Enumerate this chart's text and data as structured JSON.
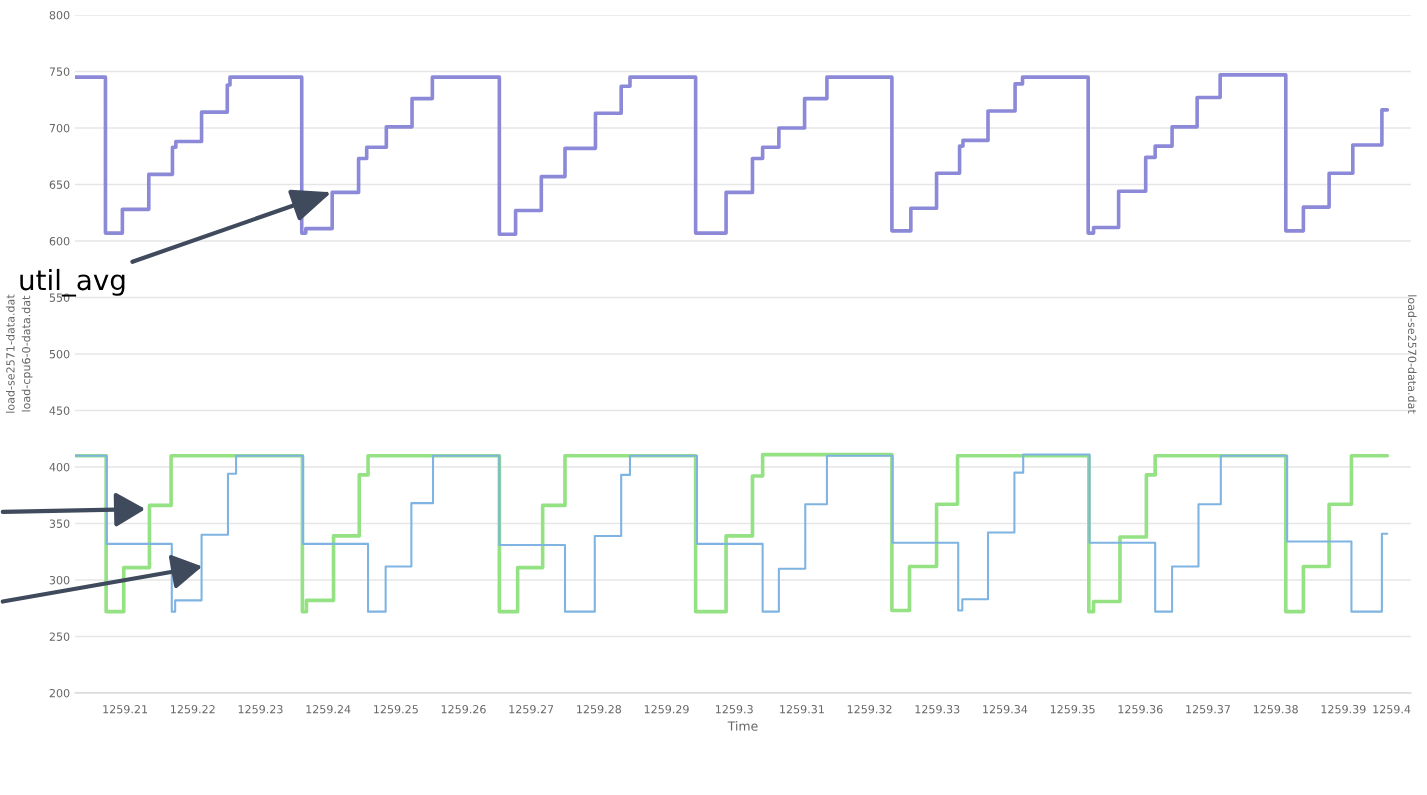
{
  "chart_data": {
    "type": "step",
    "xlabel": "Time",
    "ylabel": [
      "load-se2571-data.dat",
      "load-cpu6-0-data.dat"
    ],
    "y2label": "load-se2570-data.dat",
    "xlim": [
      1259.2026,
      1259.4
    ],
    "xticks": [
      1259.21,
      1259.22,
      1259.23,
      1259.24,
      1259.25,
      1259.26,
      1259.27,
      1259.28,
      1259.29,
      1259.3,
      1259.31,
      1259.32,
      1259.33,
      1259.34,
      1259.35,
      1259.36,
      1259.37,
      1259.38,
      1259.39,
      1259.4
    ],
    "ylim": [
      200,
      800
    ],
    "yticks": [
      200,
      250,
      300,
      350,
      400,
      450,
      500,
      550,
      600,
      650,
      700,
      750,
      800
    ],
    "grid": "y",
    "annotations": [
      {
        "text": "util_avg",
        "x": 1259.2409,
        "y": 644
      }
    ],
    "series": [
      {
        "color": "#8c89d8",
        "x": [
          1259.2026,
          1259.2071,
          1259.2096,
          1259.2135,
          1259.217,
          1259.2175,
          1259.2213,
          1259.2251,
          1259.2255,
          1259.2361,
          1259.2367,
          1259.2406,
          1259.2445,
          1259.2457,
          1259.2486,
          1259.2524,
          1259.2554,
          1259.2653,
          1259.2677,
          1259.2715,
          1259.275,
          1259.2795,
          1259.2833,
          1259.2846,
          1259.2943,
          1259.2988,
          1259.3027,
          1259.3042,
          1259.3066,
          1259.3104,
          1259.3137,
          1259.3233,
          1259.3261,
          1259.3299,
          1259.3333,
          1259.3338,
          1259.3375,
          1259.3415,
          1259.3426,
          1259.3523,
          1259.3531,
          1259.3568,
          1259.3608,
          1259.3622,
          1259.3647,
          1259.3684,
          1259.3718,
          1259.3815,
          1259.3841,
          1259.3879,
          1259.3914,
          1259.3957,
          1259.3965
        ],
        "values": [
          745,
          607,
          628,
          659,
          683,
          688,
          714,
          738,
          745,
          607,
          611,
          643,
          673,
          683,
          701,
          726,
          745,
          606,
          627,
          657,
          682,
          713,
          737,
          745,
          607,
          643,
          673,
          683,
          700,
          726,
          745,
          609,
          629,
          660,
          684,
          689,
          715,
          739,
          745,
          607,
          612,
          644,
          674,
          684,
          701,
          727,
          747,
          609,
          630,
          660,
          685,
          716,
          716
        ]
      },
      {
        "color": "#94e283",
        "x": [
          1259.2026,
          1259.2072,
          1259.2098,
          1259.2136,
          1259.2168,
          1259.2362,
          1259.2368,
          1259.2408,
          1259.2446,
          1259.2459,
          1259.2653,
          1259.268,
          1259.2717,
          1259.275,
          1259.2943,
          1259.2988,
          1259.3027,
          1259.3042,
          1259.3233,
          1259.3259,
          1259.3299,
          1259.333,
          1259.3524,
          1259.3531,
          1259.357,
          1259.3609,
          1259.3622,
          1259.3815,
          1259.3841,
          1259.3879,
          1259.3912,
          1259.3965
        ],
        "values": [
          410,
          272,
          311,
          366,
          410,
          272,
          282,
          339,
          393,
          410,
          272,
          311,
          366,
          410,
          272,
          339,
          392,
          411,
          273,
          312,
          367,
          410,
          272,
          281,
          338,
          393,
          410,
          272,
          312,
          367,
          410,
          410
        ]
      },
      {
        "color": "#7fb4e2",
        "x": [
          1259.2026,
          1259.2073,
          1259.2169,
          1259.2174,
          1259.2213,
          1259.2252,
          1259.2264,
          1259.2363,
          1259.2459,
          1259.2485,
          1259.2523,
          1259.2555,
          1259.2653,
          1259.275,
          1259.2794,
          1259.2833,
          1259.2846,
          1259.2945,
          1259.3042,
          1259.3066,
          1259.3105,
          1259.3137,
          1259.3234,
          1259.3331,
          1259.3337,
          1259.3375,
          1259.3414,
          1259.3427,
          1259.3525,
          1259.3622,
          1259.3647,
          1259.3686,
          1259.3719,
          1259.3817,
          1259.3912,
          1259.3957,
          1259.3965
        ],
        "values": [
          410,
          332,
          272,
          282,
          340,
          394,
          410,
          332,
          272,
          312,
          368,
          410,
          331,
          272,
          339,
          393,
          410,
          332,
          272,
          310,
          367,
          410,
          333,
          273,
          283,
          342,
          395,
          411,
          333,
          272,
          312,
          367,
          410,
          334,
          272,
          341,
          341
        ]
      }
    ]
  }
}
